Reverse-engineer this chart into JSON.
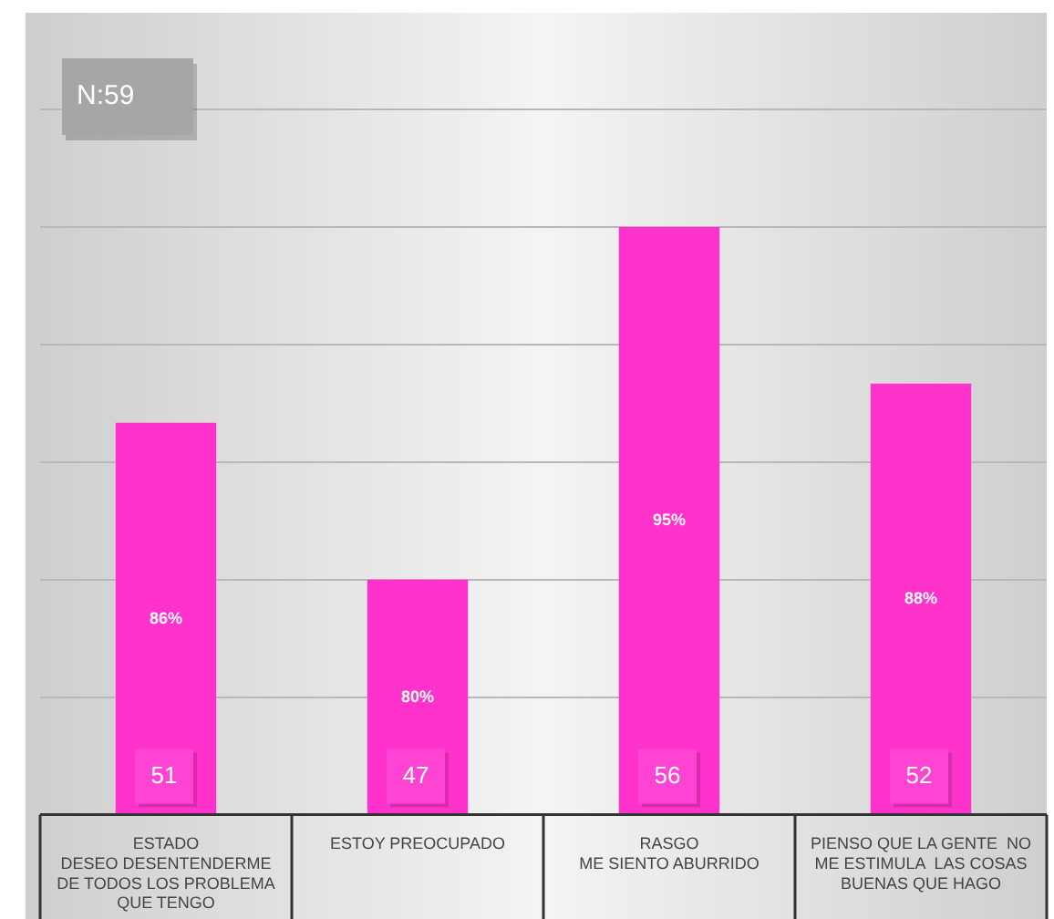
{
  "chart_data": {
    "type": "bar",
    "categories": [
      "ESTADO\nDESEO DESENTENDERME DE TODOS LOS PROBLEMA QUE TENGO",
      "ESTOY PREOCUPADO",
      "RASGO\nME SIENTO ABURRIDO",
      "PIENSO QUE LA GENTE  NO ME ESTIMULA  LAS COSAS BUENAS QUE HAGO"
    ],
    "values": [
      51,
      47,
      56,
      52
    ],
    "color": "#ff33cc",
    "data_labels": true,
    "ylim": [
      41,
      59
    ],
    "yticks": [
      {
        "value": 41,
        "label": null
      },
      {
        "value": 44,
        "label": null
      },
      {
        "value": 47,
        "label": null
      },
      {
        "value": 50,
        "label": null
      },
      {
        "value": 53,
        "label": null
      },
      {
        "value": 56,
        "label": null
      },
      {
        "value": 59,
        "label": null
      }
    ],
    "tick_labels": "x",
    "grid": "y",
    "legend": false,
    "annotations": [
      "N:59",
      "86%",
      "80%",
      "95%",
      "88%"
    ]
  }
}
